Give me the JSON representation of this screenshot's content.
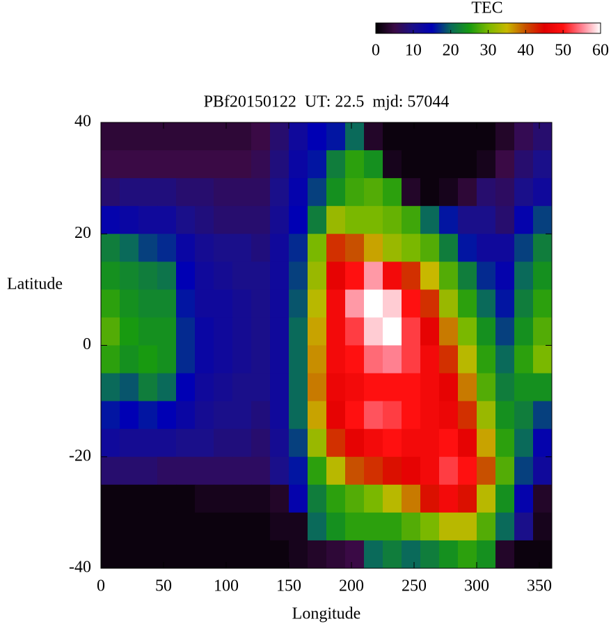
{
  "chart_data": {
    "type": "heatmap",
    "title": "PBf20150122  UT: 22.5  mjd: 57044",
    "x_label": "Longitude",
    "y_label": "Latitude",
    "xlim": [
      0,
      360
    ],
    "ylim": [
      -40,
      40
    ],
    "xticks": [
      0,
      50,
      100,
      150,
      200,
      250,
      300,
      350
    ],
    "yticks": [
      -40,
      -20,
      0,
      20,
      40
    ],
    "x": [
      7.5,
      22.5,
      37.5,
      52.5,
      67.5,
      82.5,
      97.5,
      112.5,
      127.5,
      142.5,
      157.5,
      172.5,
      187.5,
      202.5,
      217.5,
      232.5,
      247.5,
      262.5,
      277.5,
      292.5,
      307.5,
      322.5,
      337.5,
      352.5
    ],
    "y": [
      37.5,
      32.5,
      27.5,
      22.5,
      17.5,
      12.5,
      7.5,
      2.5,
      -2.5,
      -7.5,
      -12.5,
      -17.5,
      -22.5,
      -27.5,
      -32.5,
      -37.5
    ],
    "z": [
      [
        4,
        4,
        4,
        4,
        4,
        4,
        4,
        4,
        5,
        8,
        12,
        15,
        16,
        20,
        3,
        1,
        1,
        1,
        1,
        1,
        1,
        3,
        6,
        8
      ],
      [
        5,
        5,
        5,
        5,
        5,
        5,
        5,
        5,
        6,
        9,
        13,
        16,
        22,
        26,
        24,
        2,
        1,
        1,
        1,
        1,
        2,
        5,
        8,
        10
      ],
      [
        8,
        9,
        9,
        9,
        8,
        8,
        7,
        7,
        7,
        10,
        14,
        18,
        24,
        27,
        28,
        26,
        3,
        1,
        2,
        4,
        8,
        7,
        10,
        12
      ],
      [
        14,
        13,
        12,
        12,
        10,
        9,
        8,
        8,
        8,
        11,
        15,
        22,
        32,
        30,
        30,
        29,
        27,
        20,
        16,
        10,
        10,
        8,
        14,
        18
      ],
      [
        22,
        20,
        18,
        17,
        13,
        11,
        10,
        10,
        9,
        12,
        17,
        30,
        42,
        40,
        36,
        32,
        30,
        28,
        22,
        16,
        12,
        12,
        18,
        22
      ],
      [
        24,
        23,
        22,
        21,
        15,
        12,
        11,
        10,
        10,
        12,
        18,
        32,
        46,
        50,
        56,
        48,
        42,
        35,
        28,
        22,
        17,
        14,
        20,
        24
      ],
      [
        26,
        24,
        23,
        23,
        16,
        12,
        12,
        11,
        10,
        12,
        19,
        34,
        48,
        56,
        60,
        58,
        50,
        42,
        32,
        26,
        20,
        16,
        22,
        26
      ],
      [
        28,
        25,
        24,
        24,
        17,
        13,
        12,
        11,
        10,
        12,
        20,
        36,
        48,
        52,
        58,
        60,
        52,
        46,
        38,
        30,
        24,
        18,
        24,
        28
      ],
      [
        26,
        24,
        25,
        24,
        17,
        13,
        12,
        11,
        10,
        12,
        20,
        37,
        48,
        50,
        54,
        55,
        52,
        48,
        42,
        34,
        26,
        20,
        26,
        30
      ],
      [
        20,
        19,
        22,
        20,
        15,
        12,
        11,
        10,
        10,
        12,
        20,
        38,
        47,
        48,
        50,
        50,
        50,
        48,
        46,
        38,
        28,
        22,
        24,
        24
      ],
      [
        16,
        15,
        16,
        15,
        13,
        11,
        10,
        10,
        9,
        12,
        20,
        36,
        46,
        50,
        53,
        52,
        50,
        48,
        47,
        42,
        32,
        24,
        22,
        18
      ],
      [
        12,
        11,
        11,
        11,
        10,
        10,
        9,
        9,
        8,
        11,
        18,
        32,
        42,
        46,
        48,
        50,
        48,
        48,
        50,
        46,
        36,
        26,
        20,
        14
      ],
      [
        8,
        8,
        8,
        7,
        7,
        7,
        7,
        7,
        7,
        10,
        16,
        26,
        34,
        40,
        42,
        44,
        46,
        48,
        52,
        50,
        40,
        28,
        18,
        12
      ],
      [
        1,
        1,
        1,
        1,
        1,
        2,
        2,
        2,
        2,
        3,
        14,
        22,
        26,
        28,
        30,
        34,
        38,
        44,
        48,
        44,
        34,
        24,
        14,
        3
      ],
      [
        1,
        1,
        1,
        1,
        1,
        1,
        1,
        1,
        1,
        2,
        2,
        20,
        24,
        26,
        26,
        26,
        28,
        30,
        34,
        34,
        28,
        20,
        10,
        2
      ],
      [
        1,
        1,
        1,
        1,
        1,
        1,
        1,
        1,
        1,
        1,
        2,
        3,
        4,
        5,
        20,
        22,
        20,
        22,
        24,
        26,
        24,
        3,
        1,
        1
      ]
    ],
    "colorbar": {
      "title": "TEC",
      "lim": [
        0,
        60
      ],
      "ticks": [
        0,
        10,
        20,
        30,
        40,
        50,
        60
      ],
      "colormap": [
        "#000000",
        "#3a0a45",
        "#1a0f8a",
        "#0000b4",
        "#0a6a5a",
        "#189a10",
        "#7ab800",
        "#c8b800",
        "#c85000",
        "#e00000",
        "#ff1010",
        "#ff8090",
        "#ffffff"
      ]
    }
  }
}
